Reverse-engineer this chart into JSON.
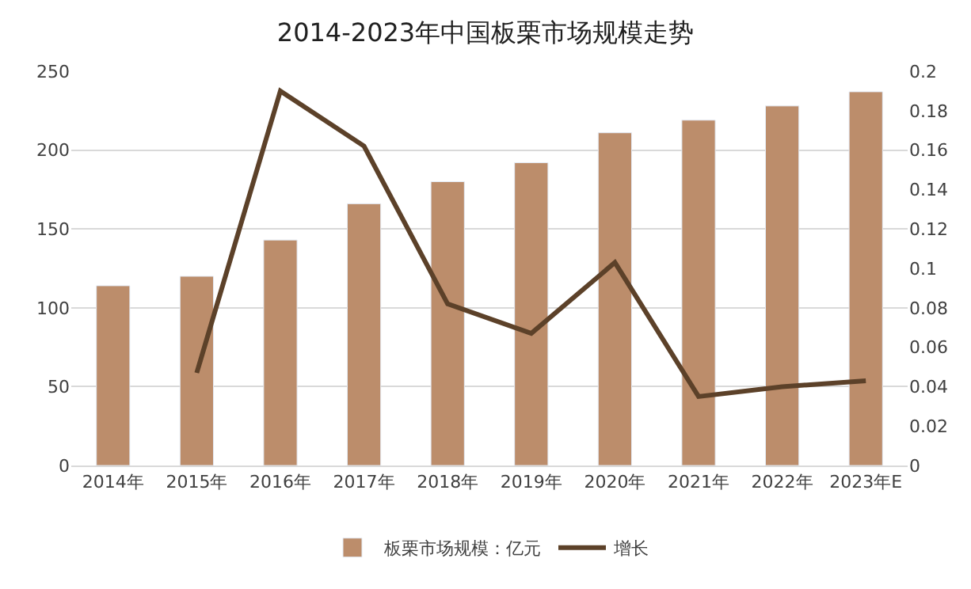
{
  "chart_data": {
    "type": "bar",
    "title": "2014-2023年中国板栗市场规模走势",
    "categories": [
      "2014年",
      "2015年",
      "2016年",
      "2017年",
      "2018年",
      "2019年",
      "2020年",
      "2021年",
      "2022年",
      "2023年E"
    ],
    "series": [
      {
        "name": "板栗市场规模：亿元",
        "color": "#bc8d6b",
        "values": [
          114,
          120,
          143,
          166,
          180,
          192,
          211,
          219,
          228,
          237
        ]
      },
      {
        "name": "增长",
        "type": "line",
        "axis": "y2",
        "color": "#5c4129",
        "marker": "none",
        "line_style": "solid",
        "values": [
          null,
          0.047,
          0.19,
          0.162,
          0.082,
          0.067,
          0.103,
          0.035,
          0.04,
          0.043
        ]
      }
    ],
    "ylim": [
      0,
      250
    ],
    "yticks": [
      0,
      50,
      100,
      150,
      200,
      250
    ],
    "y2lim": [
      0,
      0.2
    ],
    "y2ticks": [
      0,
      0.02,
      0.04,
      0.06,
      0.08,
      0.1,
      0.12,
      0.14,
      0.16,
      0.18,
      0.2
    ],
    "grid": "y",
    "legend": "bottom"
  }
}
